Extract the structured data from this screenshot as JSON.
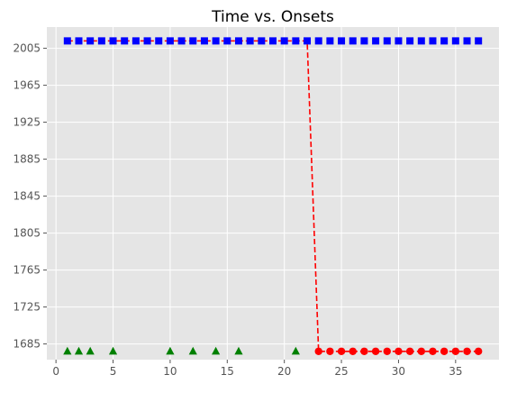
{
  "chart_data": {
    "type": "scatter",
    "title": "Time vs. Onsets",
    "xlabel": "",
    "ylabel": "",
    "xlim": [
      -0.8,
      38.8
    ],
    "ylim": [
      1668,
      2028
    ],
    "x_ticks": [
      0,
      5,
      10,
      15,
      20,
      25,
      30,
      35
    ],
    "y_ticks": [
      1685,
      1725,
      1765,
      1805,
      1845,
      1885,
      1925,
      1965,
      2005
    ],
    "grid": true,
    "series": [
      {
        "marker": "square",
        "color": "#0000ff",
        "points": [
          [
            1,
            2013
          ],
          [
            2,
            2013
          ],
          [
            3,
            2013
          ],
          [
            4,
            2013
          ],
          [
            5,
            2013
          ],
          [
            6,
            2013
          ],
          [
            7,
            2013
          ],
          [
            8,
            2013
          ],
          [
            9,
            2013
          ],
          [
            10,
            2013
          ],
          [
            11,
            2013
          ],
          [
            12,
            2013
          ],
          [
            13,
            2013
          ],
          [
            14,
            2013
          ],
          [
            15,
            2013
          ],
          [
            16,
            2013
          ],
          [
            17,
            2013
          ],
          [
            18,
            2013
          ],
          [
            19,
            2013
          ],
          [
            20,
            2013
          ],
          [
            21,
            2013
          ],
          [
            22,
            2013
          ],
          [
            23,
            2013
          ],
          [
            24,
            2013
          ],
          [
            25,
            2013
          ],
          [
            26,
            2013
          ],
          [
            27,
            2013
          ],
          [
            28,
            2013
          ],
          [
            29,
            2013
          ],
          [
            30,
            2013
          ],
          [
            31,
            2013
          ],
          [
            32,
            2013
          ],
          [
            33,
            2013
          ],
          [
            34,
            2013
          ],
          [
            35,
            2013
          ],
          [
            36,
            2013
          ],
          [
            37,
            2013
          ]
        ]
      },
      {
        "marker": "circle",
        "color": "#ff0000",
        "points": [
          [
            23,
            1677
          ],
          [
            24,
            1677
          ],
          [
            25,
            1677
          ],
          [
            26,
            1677
          ],
          [
            27,
            1677
          ],
          [
            28,
            1677
          ],
          [
            29,
            1677
          ],
          [
            30,
            1677
          ],
          [
            31,
            1677
          ],
          [
            32,
            1677
          ],
          [
            33,
            1677
          ],
          [
            34,
            1677
          ],
          [
            35,
            1677
          ],
          [
            36,
            1677
          ],
          [
            37,
            1677
          ]
        ]
      },
      {
        "marker": "triangle",
        "color": "#008000",
        "points": [
          [
            1,
            1677
          ],
          [
            2,
            1677
          ],
          [
            3,
            1677
          ],
          [
            5,
            1677
          ],
          [
            10,
            1677
          ],
          [
            12,
            1677
          ],
          [
            14,
            1677
          ],
          [
            16,
            1677
          ],
          [
            21,
            1677
          ]
        ]
      },
      {
        "marker": "none",
        "line": "dashed",
        "color": "#ff0000",
        "points": [
          [
            1,
            2013
          ],
          [
            22,
            2013
          ],
          [
            23,
            1677
          ],
          [
            37,
            1677
          ]
        ]
      }
    ]
  }
}
